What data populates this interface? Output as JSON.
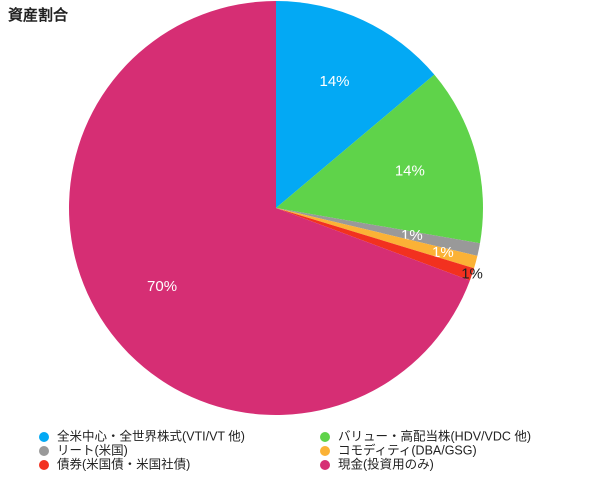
{
  "chart_data": {
    "type": "pie",
    "title": "資産割合",
    "categories": [
      "全米中心・全世界株式(VTI/VT 他)",
      "バリュー・高配当株(HDV/VDC 他)",
      "リート(米国)",
      "コモディティ(DBA/GSG)",
      "債券(米国債・米国社債)",
      "現金(投資用のみ)"
    ],
    "values": [
      14,
      14,
      1,
      1,
      1,
      70
    ],
    "value_labels": [
      "14%",
      "14%",
      "1%",
      "1%",
      "1%",
      "70%"
    ],
    "colors": [
      "#03a9f4",
      "#5fd34a",
      "#999999",
      "#fbb236",
      "#f2311f",
      "#d62e74"
    ],
    "legend": "bottom"
  }
}
